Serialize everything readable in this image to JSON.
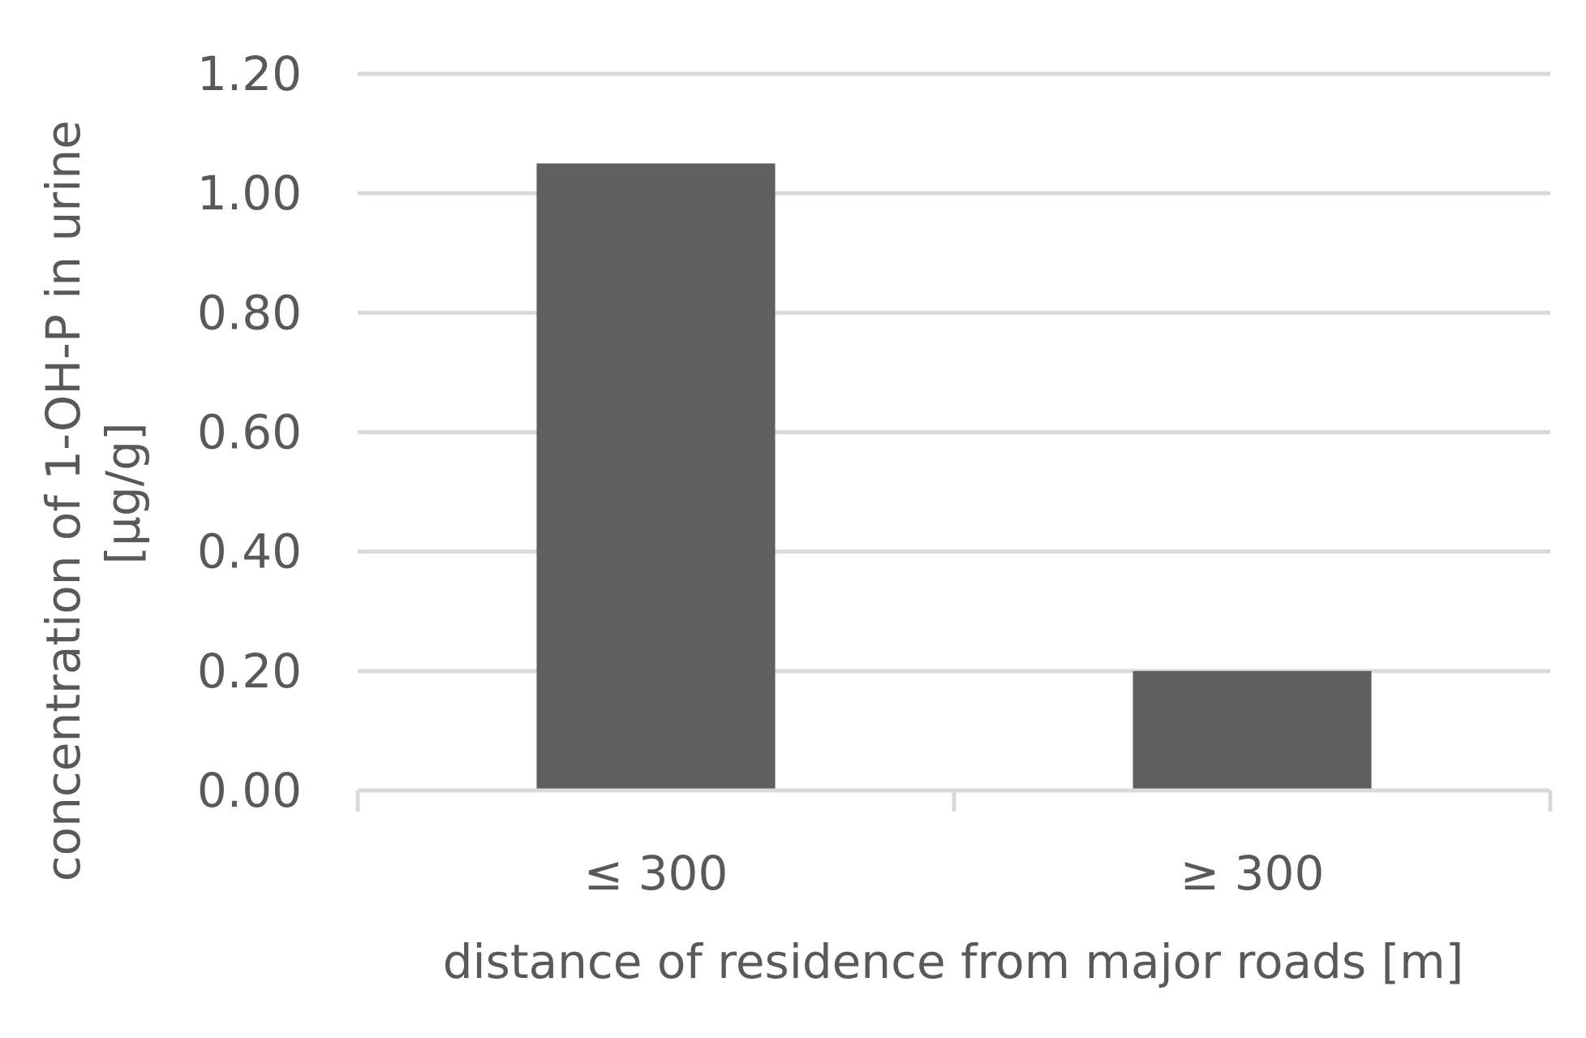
{
  "chart_data": {
    "type": "bar",
    "categories": [
      "≤ 300",
      "≥ 300"
    ],
    "values": [
      1.05,
      0.2
    ],
    "ylabel_lines": [
      "concentration of 1-OH-P in urine",
      "[µg/g]"
    ],
    "xlabel": "distance of residence from major roads [m]",
    "ylim": [
      0,
      1.2
    ],
    "yticks": [
      "0.00",
      "0.20",
      "0.40",
      "0.60",
      "0.80",
      "1.00",
      "1.20"
    ],
    "grid": true,
    "bar_color": "#5f5f5f",
    "grid_color": "#d9d9d9",
    "text_color": "#595959"
  }
}
